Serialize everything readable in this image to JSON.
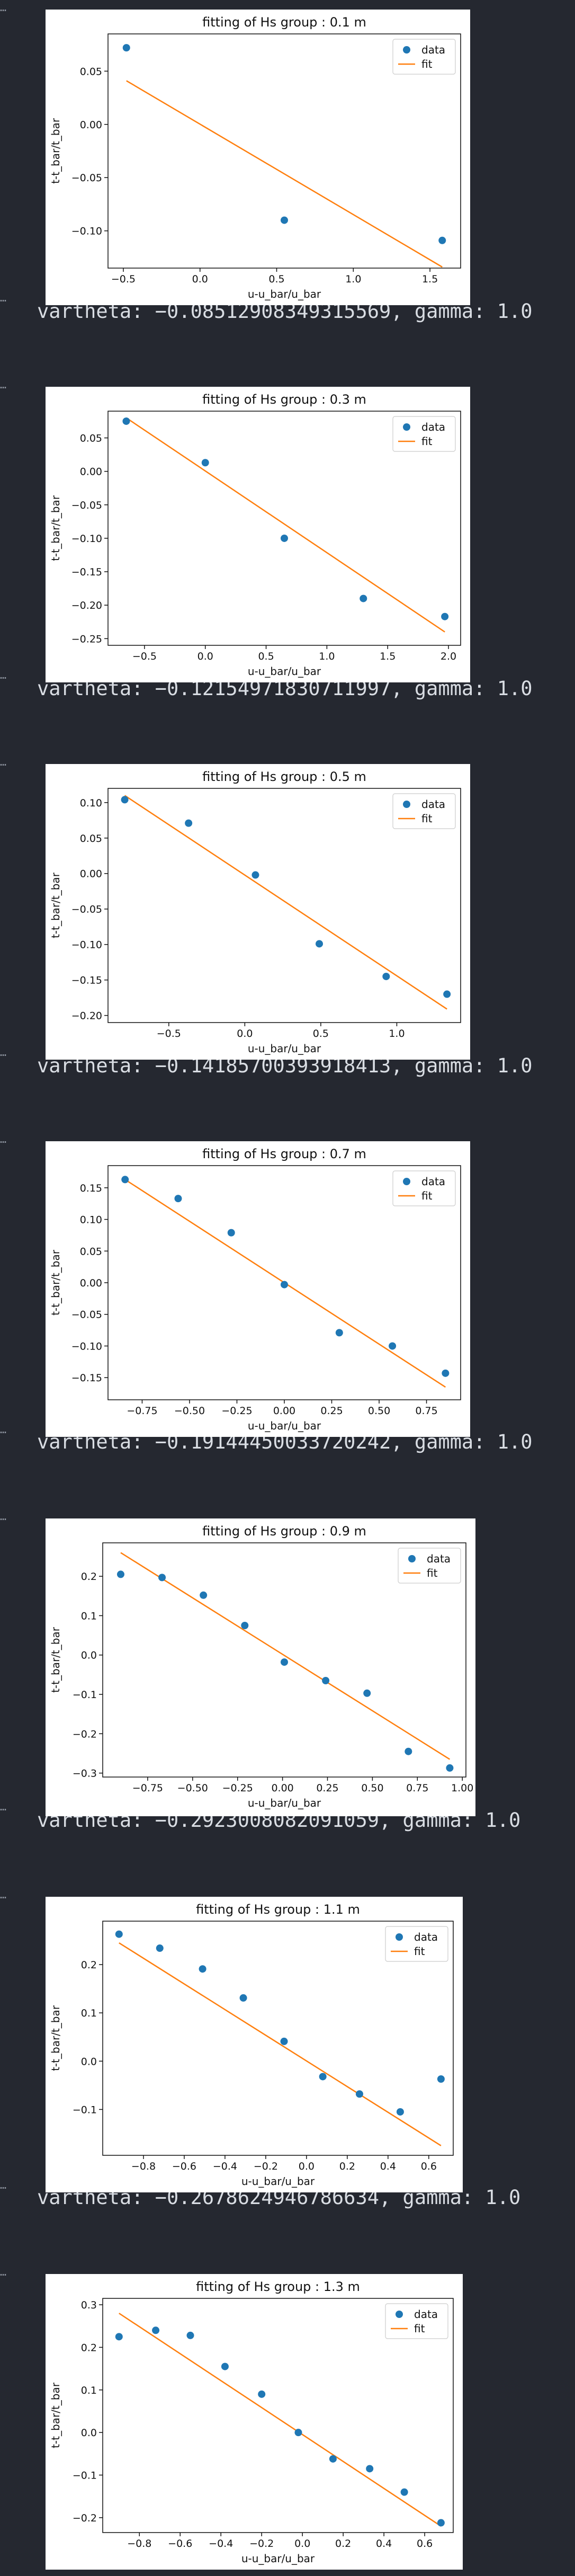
{
  "output_lines": [
    "vartheta: −0.08512908349315569, gamma: 1.0",
    "vartheta: −0.12154971830711997, gamma: 1.0",
    "vartheta: −0.14185700393918413, gamma: 1.0",
    "vartheta: −0.19144450033720242, gamma: 1.0",
    "vartheta: −0.2923008082091059, gamma: 1.0",
    "vartheta: −0.2678624946786634, gamma: 1.0"
  ],
  "cell_marker": "…",
  "colors": {
    "data": "#1f77b4",
    "fit": "#ff7f0e",
    "background": "#252830"
  },
  "chart_data": [
    {
      "type": "scatter",
      "title": "fitting of Hs group : 0.1 m",
      "xlabel": "u-u_bar/u_bar",
      "ylabel": "t-t_bar/t_bar",
      "xlim": [
        -0.6,
        1.7
      ],
      "ylim": [
        -0.135,
        0.085
      ],
      "xticks": [
        -0.5,
        0.0,
        0.5,
        1.0,
        1.5
      ],
      "xtick_labels": [
        "−0.5",
        "0.0",
        "0.5",
        "1.0",
        "1.5"
      ],
      "yticks": [
        -0.1,
        -0.05,
        0.0,
        0.05
      ],
      "ytick_labels": [
        "−0.10",
        "−0.05",
        "0.00",
        "0.05"
      ],
      "legend": "top-right",
      "legend_entries": [
        "data",
        "fit"
      ],
      "series": [
        {
          "name": "data",
          "type": "scatter",
          "x": [
            -0.48,
            0.55,
            1.58
          ],
          "y": [
            0.072,
            -0.09,
            -0.109
          ]
        },
        {
          "name": "fit",
          "type": "line",
          "x": [
            -0.48,
            1.58
          ],
          "y": [
            0.041,
            -0.134
          ]
        }
      ]
    },
    {
      "type": "scatter",
      "title": "fitting of Hs group : 0.3 m",
      "xlabel": "u-u_bar/u_bar",
      "ylabel": "t-t_bar/t_bar",
      "xlim": [
        -0.8,
        2.1
      ],
      "ylim": [
        -0.26,
        0.09
      ],
      "xticks": [
        -0.5,
        0.0,
        0.5,
        1.0,
        1.5,
        2.0
      ],
      "xtick_labels": [
        "−0.5",
        "0.0",
        "0.5",
        "1.0",
        "1.5",
        "2.0"
      ],
      "yticks": [
        -0.25,
        -0.2,
        -0.15,
        -0.1,
        -0.05,
        0.0,
        0.05
      ],
      "ytick_labels": [
        "−0.25",
        "−0.20",
        "−0.15",
        "−0.10",
        "−0.05",
        "0.00",
        "0.05"
      ],
      "legend": "top-right",
      "legend_entries": [
        "data",
        "fit"
      ],
      "series": [
        {
          "name": "data",
          "type": "scatter",
          "x": [
            -0.65,
            0.0,
            0.65,
            1.3,
            1.97
          ],
          "y": [
            0.075,
            0.013,
            -0.1,
            -0.19,
            -0.217
          ]
        },
        {
          "name": "fit",
          "type": "line",
          "x": [
            -0.65,
            1.97
          ],
          "y": [
            0.08,
            -0.24
          ]
        }
      ]
    },
    {
      "type": "scatter",
      "title": "fitting of Hs group : 0.5 m",
      "xlabel": "u-u_bar/u_bar",
      "ylabel": "t-t_bar/t_bar",
      "xlim": [
        -0.9,
        1.42
      ],
      "ylim": [
        -0.21,
        0.12
      ],
      "xticks": [
        -0.5,
        0.0,
        0.5,
        1.0
      ],
      "xtick_labels": [
        "−0.5",
        "0.0",
        "0.5",
        "1.0"
      ],
      "yticks": [
        -0.2,
        -0.15,
        -0.1,
        -0.05,
        0.0,
        0.05,
        0.1
      ],
      "ytick_labels": [
        "−0.20",
        "−0.15",
        "−0.10",
        "−0.05",
        "0.00",
        "0.05",
        "0.10"
      ],
      "legend": "top-right",
      "legend_entries": [
        "data",
        "fit"
      ],
      "series": [
        {
          "name": "data",
          "type": "scatter",
          "x": [
            -0.79,
            -0.37,
            0.07,
            0.49,
            0.93,
            1.33
          ],
          "y": [
            0.104,
            0.071,
            -0.002,
            -0.099,
            -0.145,
            -0.17
          ]
        },
        {
          "name": "fit",
          "type": "line",
          "x": [
            -0.79,
            1.33
          ],
          "y": [
            0.11,
            -0.191
          ]
        }
      ]
    },
    {
      "type": "scatter",
      "title": "fitting of Hs group : 0.7 m",
      "xlabel": "u-u_bar/u_bar",
      "ylabel": "t-t_bar/t_bar",
      "xlim": [
        -0.93,
        0.93
      ],
      "ylim": [
        -0.185,
        0.185
      ],
      "xticks": [
        -0.75,
        -0.5,
        -0.25,
        0.0,
        0.25,
        0.5,
        0.75
      ],
      "xtick_labels": [
        "−0.75",
        "−0.50",
        "−0.25",
        "0.00",
        "0.25",
        "0.50",
        "0.75"
      ],
      "yticks": [
        -0.15,
        -0.1,
        -0.05,
        0.0,
        0.05,
        0.1,
        0.15
      ],
      "ytick_labels": [
        "−0.15",
        "−0.10",
        "−0.05",
        "0.00",
        "0.05",
        "0.10",
        "0.15"
      ],
      "legend": "top-right",
      "legend_entries": [
        "data",
        "fit"
      ],
      "series": [
        {
          "name": "data",
          "type": "scatter",
          "x": [
            -0.84,
            -0.56,
            -0.28,
            0.0,
            0.29,
            0.57,
            0.85
          ],
          "y": [
            0.163,
            0.133,
            0.079,
            -0.003,
            -0.079,
            -0.1,
            -0.143
          ]
        },
        {
          "name": "fit",
          "type": "line",
          "x": [
            -0.84,
            0.85
          ],
          "y": [
            0.163,
            -0.165
          ]
        }
      ]
    },
    {
      "type": "scatter",
      "title": "fitting of Hs group : 0.9 m",
      "xlabel": "u-u_bar/u_bar",
      "ylabel": "t-t_bar/t_bar",
      "xlim": [
        -1.0,
        1.02
      ],
      "ylim": [
        -0.31,
        0.285
      ],
      "xticks": [
        -0.75,
        -0.5,
        -0.25,
        0.0,
        0.25,
        0.5,
        0.75,
        1.0
      ],
      "xtick_labels": [
        "−0.75",
        "−0.50",
        "−0.25",
        "0.00",
        "0.25",
        "0.50",
        "0.75",
        "1.00"
      ],
      "yticks": [
        -0.3,
        -0.2,
        -0.1,
        0.0,
        0.1,
        0.2
      ],
      "ytick_labels": [
        "−0.3",
        "−0.2",
        "−0.1",
        "0.0",
        "0.1",
        "0.2"
      ],
      "legend": "top-right",
      "legend_entries": [
        "data",
        "fit"
      ],
      "series": [
        {
          "name": "data",
          "type": "scatter",
          "x": [
            -0.9,
            -0.67,
            -0.44,
            -0.21,
            0.01,
            0.24,
            0.47,
            0.7,
            0.93
          ],
          "y": [
            0.205,
            0.197,
            0.152,
            0.075,
            -0.018,
            -0.065,
            -0.097,
            -0.245,
            -0.287
          ]
        },
        {
          "name": "fit",
          "type": "line",
          "x": [
            -0.9,
            0.93
          ],
          "y": [
            0.26,
            -0.265
          ]
        }
      ]
    },
    {
      "type": "scatter",
      "title": "fitting of Hs group : 1.1 m",
      "xlabel": "u-u_bar/u_bar",
      "ylabel": "t-t_bar/t_bar",
      "xlim": [
        -1.0,
        0.72
      ],
      "ylim": [
        -0.195,
        0.29
      ],
      "xticks": [
        -0.8,
        -0.6,
        -0.4,
        -0.2,
        0.0,
        0.2,
        0.4,
        0.6
      ],
      "xtick_labels": [
        "−0.8",
        "−0.6",
        "−0.4",
        "−0.2",
        "0.0",
        "0.2",
        "0.4",
        "0.6"
      ],
      "yticks": [
        -0.1,
        0.0,
        0.1,
        0.2
      ],
      "ytick_labels": [
        "−0.1",
        "0.0",
        "0.1",
        "0.2"
      ],
      "legend": "top-right",
      "legend_entries": [
        "data",
        "fit"
      ],
      "series": [
        {
          "name": "data",
          "type": "scatter",
          "x": [
            -0.92,
            -0.72,
            -0.51,
            -0.31,
            -0.11,
            0.08,
            0.26,
            0.46,
            0.66
          ],
          "y": [
            0.263,
            0.234,
            0.191,
            0.131,
            0.041,
            -0.032,
            -0.068,
            -0.105,
            -0.037
          ]
        },
        {
          "name": "fit",
          "type": "line",
          "x": [
            -0.92,
            0.66
          ],
          "y": [
            0.245,
            -0.175
          ]
        }
      ]
    },
    {
      "type": "scatter",
      "title": "fitting of Hs group : 1.3 m",
      "xlabel": "u-u_bar/u_bar",
      "ylabel": "t-t_bar/t_bar",
      "xlim": [
        -0.98,
        0.74
      ],
      "ylim": [
        -0.235,
        0.315
      ],
      "xticks": [
        -0.8,
        -0.6,
        -0.4,
        -0.2,
        0.0,
        0.2,
        0.4,
        0.6
      ],
      "xtick_labels": [
        "−0.8",
        "−0.6",
        "−0.4",
        "−0.2",
        "0.0",
        "0.2",
        "0.4",
        "0.6"
      ],
      "yticks": [
        -0.2,
        -0.1,
        0.0,
        0.1,
        0.2,
        0.3
      ],
      "ytick_labels": [
        "−0.2",
        "−0.1",
        "0.0",
        "0.1",
        "0.2",
        "0.3"
      ],
      "legend": "top-right",
      "legend_entries": [
        "data",
        "fit"
      ],
      "series": [
        {
          "name": "data",
          "type": "scatter",
          "x": [
            -0.9,
            -0.72,
            -0.55,
            -0.38,
            -0.2,
            -0.02,
            0.15,
            0.33,
            0.5,
            0.68
          ],
          "y": [
            0.225,
            0.24,
            0.228,
            0.155,
            0.09,
            0.0,
            -0.062,
            -0.085,
            -0.14,
            -0.212
          ]
        },
        {
          "name": "fit",
          "type": "line",
          "x": [
            -0.9,
            0.68
          ],
          "y": [
            0.28,
            -0.22
          ]
        }
      ]
    }
  ]
}
